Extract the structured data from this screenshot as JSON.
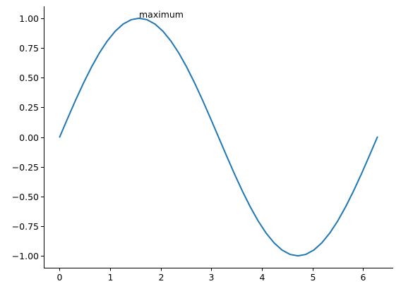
{
  "chart_data": {
    "type": "line",
    "title": "",
    "xlabel": "",
    "ylabel": "",
    "xlim": [
      -0.314,
      6.597
    ],
    "ylim": [
      -1.1,
      1.1
    ],
    "x_ticks": [
      0,
      1,
      2,
      3,
      4,
      5,
      6
    ],
    "x_tick_labels": [
      "0",
      "1",
      "2",
      "3",
      "4",
      "5",
      "6"
    ],
    "y_ticks": [
      1.0,
      0.75,
      0.5,
      0.25,
      0.0,
      -0.25,
      -0.5,
      -0.75,
      -1.0
    ],
    "y_tick_labels": [
      "1.00",
      "0.75",
      "0.50",
      "0.25",
      "0.00",
      "−0.25",
      "−0.50",
      "−0.75",
      "−1.00"
    ],
    "grid": false,
    "spines": {
      "top": false,
      "right": false,
      "left": true,
      "bottom": true
    },
    "series": [
      {
        "color": "#1f77b4",
        "x": [
          0.0,
          0.1571,
          0.3142,
          0.4712,
          0.6283,
          0.7854,
          0.9425,
          1.0996,
          1.2566,
          1.4137,
          1.5708,
          1.7279,
          1.885,
          2.042,
          2.1991,
          2.3562,
          2.5133,
          2.6704,
          2.8274,
          2.9845,
          3.1416,
          3.2987,
          3.4558,
          3.6128,
          3.7699,
          3.927,
          4.0841,
          4.2412,
          4.3982,
          4.5553,
          4.7124,
          4.8695,
          5.0265,
          5.1836,
          5.3407,
          5.4978,
          5.6549,
          5.8119,
          5.969,
          6.1261,
          6.2832
        ],
        "y": [
          0.0,
          0.1564,
          0.309,
          0.454,
          0.5878,
          0.7071,
          0.809,
          0.891,
          0.9511,
          0.9877,
          1.0,
          0.9877,
          0.9511,
          0.891,
          0.809,
          0.7071,
          0.5878,
          0.454,
          0.309,
          0.1564,
          0.0,
          -0.1564,
          -0.309,
          -0.454,
          -0.5878,
          -0.7071,
          -0.809,
          -0.891,
          -0.9511,
          -0.9877,
          -1.0,
          -0.9877,
          -0.9511,
          -0.891,
          -0.809,
          -0.7071,
          -0.5878,
          -0.454,
          -0.309,
          -0.1564,
          0.0
        ]
      }
    ],
    "annotations": [
      {
        "text": "maximum",
        "x": 1.5708,
        "y": 1.0
      }
    ]
  }
}
